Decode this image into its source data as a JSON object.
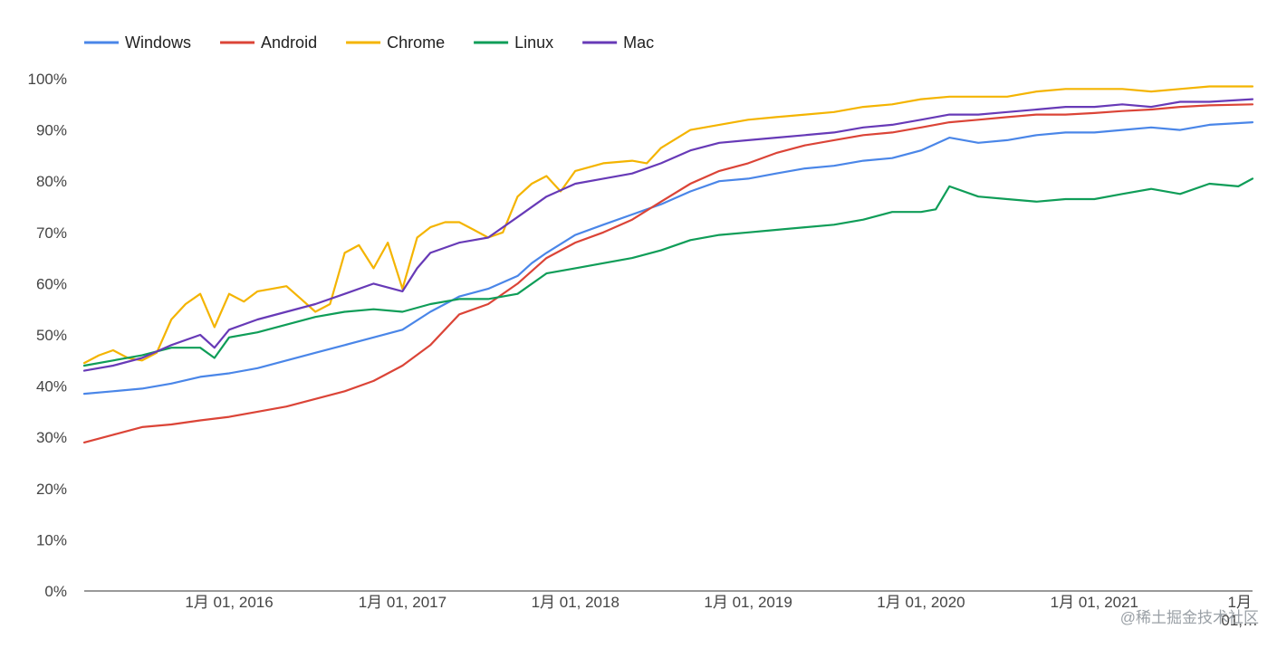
{
  "chart_data": {
    "type": "line",
    "title": "",
    "xlabel": "",
    "ylabel": "",
    "ylim": [
      0,
      100
    ],
    "y_ticks": [
      "0%",
      "10%",
      "20%",
      "30%",
      "40%",
      "50%",
      "60%",
      "70%",
      "80%",
      "90%",
      "100%"
    ],
    "x_range": [
      "2015-03-01",
      "2021-12-01"
    ],
    "x_ticks": [
      {
        "date": "2016-01-01",
        "label": "1月 01, 2016"
      },
      {
        "date": "2017-01-01",
        "label": "1月 01, 2017"
      },
      {
        "date": "2018-01-01",
        "label": "1月 01, 2018"
      },
      {
        "date": "2019-01-01",
        "label": "1月 01, 2019"
      },
      {
        "date": "2020-01-01",
        "label": "1月 01, 2020"
      },
      {
        "date": "2021-01-01",
        "label": "1月 01, 2021"
      },
      {
        "date": "2022-01-01",
        "label": "1月 01,…"
      }
    ],
    "legend_position": "top-left",
    "grid": false,
    "series": [
      {
        "name": "Windows",
        "color": "#4a86e8",
        "points": [
          [
            "2015-03-01",
            38.5
          ],
          [
            "2015-05-01",
            39
          ],
          [
            "2015-07-01",
            39.5
          ],
          [
            "2015-09-01",
            40.5
          ],
          [
            "2015-11-01",
            41.8
          ],
          [
            "2016-01-01",
            42.5
          ],
          [
            "2016-03-01",
            43.5
          ],
          [
            "2016-05-01",
            45
          ],
          [
            "2016-07-01",
            46.5
          ],
          [
            "2016-09-01",
            48
          ],
          [
            "2016-11-01",
            49.5
          ],
          [
            "2017-01-01",
            51
          ],
          [
            "2017-03-01",
            54.5
          ],
          [
            "2017-05-01",
            57.5
          ],
          [
            "2017-07-01",
            59
          ],
          [
            "2017-09-01",
            61.5
          ],
          [
            "2017-10-01",
            64
          ],
          [
            "2017-11-01",
            66
          ],
          [
            "2018-01-01",
            69.5
          ],
          [
            "2018-03-01",
            71.5
          ],
          [
            "2018-05-01",
            73.5
          ],
          [
            "2018-07-01",
            75.5
          ],
          [
            "2018-09-01",
            78
          ],
          [
            "2018-11-01",
            80
          ],
          [
            "2019-01-01",
            80.5
          ],
          [
            "2019-03-01",
            81.5
          ],
          [
            "2019-05-01",
            82.5
          ],
          [
            "2019-07-01",
            83
          ],
          [
            "2019-09-01",
            84
          ],
          [
            "2019-11-01",
            84.5
          ],
          [
            "2020-01-01",
            86
          ],
          [
            "2020-03-01",
            88.5
          ],
          [
            "2020-05-01",
            87.5
          ],
          [
            "2020-07-01",
            88
          ],
          [
            "2020-09-01",
            89
          ],
          [
            "2020-11-01",
            89.5
          ],
          [
            "2021-01-01",
            89.5
          ],
          [
            "2021-03-01",
            90
          ],
          [
            "2021-05-01",
            90.5
          ],
          [
            "2021-07-01",
            90
          ],
          [
            "2021-09-01",
            91
          ],
          [
            "2021-12-01",
            91.5
          ]
        ]
      },
      {
        "name": "Android",
        "color": "#db4437",
        "points": [
          [
            "2015-03-01",
            29
          ],
          [
            "2015-05-01",
            30.5
          ],
          [
            "2015-07-01",
            32
          ],
          [
            "2015-09-01",
            32.5
          ],
          [
            "2015-11-01",
            33.3
          ],
          [
            "2016-01-01",
            34
          ],
          [
            "2016-03-01",
            35
          ],
          [
            "2016-05-01",
            36
          ],
          [
            "2016-07-01",
            37.5
          ],
          [
            "2016-09-01",
            39
          ],
          [
            "2016-11-01",
            41
          ],
          [
            "2017-01-01",
            44
          ],
          [
            "2017-03-01",
            48
          ],
          [
            "2017-05-01",
            54
          ],
          [
            "2017-07-01",
            56
          ],
          [
            "2017-09-01",
            60
          ],
          [
            "2017-11-01",
            65
          ],
          [
            "2018-01-01",
            68
          ],
          [
            "2018-03-01",
            70
          ],
          [
            "2018-05-01",
            72.5
          ],
          [
            "2018-07-01",
            76
          ],
          [
            "2018-09-01",
            79.5
          ],
          [
            "2018-11-01",
            82
          ],
          [
            "2019-01-01",
            83.5
          ],
          [
            "2019-03-01",
            85.5
          ],
          [
            "2019-05-01",
            87
          ],
          [
            "2019-07-01",
            88
          ],
          [
            "2019-09-01",
            89
          ],
          [
            "2019-11-01",
            89.5
          ],
          [
            "2020-01-01",
            90.5
          ],
          [
            "2020-03-01",
            91.5
          ],
          [
            "2020-05-01",
            92
          ],
          [
            "2020-07-01",
            92.5
          ],
          [
            "2020-09-01",
            93
          ],
          [
            "2020-11-01",
            93
          ],
          [
            "2021-01-01",
            93.3
          ],
          [
            "2021-03-01",
            93.7
          ],
          [
            "2021-05-01",
            94
          ],
          [
            "2021-07-01",
            94.5
          ],
          [
            "2021-09-01",
            94.8
          ],
          [
            "2021-12-01",
            95
          ]
        ]
      },
      {
        "name": "Chrome",
        "color": "#f4b400",
        "points": [
          [
            "2015-03-01",
            44.5
          ],
          [
            "2015-04-01",
            46
          ],
          [
            "2015-05-01",
            47
          ],
          [
            "2015-06-01",
            45.5
          ],
          [
            "2015-07-01",
            45
          ],
          [
            "2015-08-01",
            46.5
          ],
          [
            "2015-09-01",
            53
          ],
          [
            "2015-10-01",
            56
          ],
          [
            "2015-11-01",
            58
          ],
          [
            "2015-12-01",
            51.5
          ],
          [
            "2016-01-01",
            58
          ],
          [
            "2016-02-01",
            56.5
          ],
          [
            "2016-03-01",
            58.5
          ],
          [
            "2016-04-01",
            59
          ],
          [
            "2016-05-01",
            59.5
          ],
          [
            "2016-06-01",
            57
          ],
          [
            "2016-07-01",
            54.5
          ],
          [
            "2016-08-01",
            56
          ],
          [
            "2016-09-01",
            66
          ],
          [
            "2016-10-01",
            67.5
          ],
          [
            "2016-11-01",
            63
          ],
          [
            "2016-12-01",
            68
          ],
          [
            "2017-01-01",
            59
          ],
          [
            "2017-02-01",
            69
          ],
          [
            "2017-03-01",
            71
          ],
          [
            "2017-04-01",
            72
          ],
          [
            "2017-05-01",
            72
          ],
          [
            "2017-06-01",
            70.5
          ],
          [
            "2017-07-01",
            69
          ],
          [
            "2017-08-01",
            70
          ],
          [
            "2017-09-01",
            77
          ],
          [
            "2017-10-01",
            79.5
          ],
          [
            "2017-11-01",
            81
          ],
          [
            "2017-12-01",
            78
          ],
          [
            "2018-01-01",
            82
          ],
          [
            "2018-03-01",
            83.5
          ],
          [
            "2018-05-01",
            84
          ],
          [
            "2018-06-01",
            83.5
          ],
          [
            "2018-07-01",
            86.5
          ],
          [
            "2018-09-01",
            90
          ],
          [
            "2018-11-01",
            91
          ],
          [
            "2019-01-01",
            92
          ],
          [
            "2019-03-01",
            92.5
          ],
          [
            "2019-05-01",
            93
          ],
          [
            "2019-07-01",
            93.5
          ],
          [
            "2019-09-01",
            94.5
          ],
          [
            "2019-11-01",
            95
          ],
          [
            "2020-01-01",
            96
          ],
          [
            "2020-03-01",
            96.5
          ],
          [
            "2020-05-01",
            96.5
          ],
          [
            "2020-07-01",
            96.5
          ],
          [
            "2020-09-01",
            97.5
          ],
          [
            "2020-11-01",
            98
          ],
          [
            "2021-01-01",
            98
          ],
          [
            "2021-03-01",
            98
          ],
          [
            "2021-05-01",
            97.5
          ],
          [
            "2021-07-01",
            98
          ],
          [
            "2021-09-01",
            98.5
          ],
          [
            "2021-12-01",
            98.5
          ]
        ]
      },
      {
        "name": "Linux",
        "color": "#0f9d58",
        "points": [
          [
            "2015-03-01",
            44
          ],
          [
            "2015-05-01",
            45
          ],
          [
            "2015-07-01",
            46
          ],
          [
            "2015-09-01",
            47.5
          ],
          [
            "2015-11-01",
            47.5
          ],
          [
            "2015-12-01",
            45.5
          ],
          [
            "2016-01-01",
            49.5
          ],
          [
            "2016-03-01",
            50.5
          ],
          [
            "2016-05-01",
            52
          ],
          [
            "2016-07-01",
            53.5
          ],
          [
            "2016-09-01",
            54.5
          ],
          [
            "2016-11-01",
            55
          ],
          [
            "2017-01-01",
            54.5
          ],
          [
            "2017-03-01",
            56
          ],
          [
            "2017-05-01",
            57
          ],
          [
            "2017-07-01",
            57
          ],
          [
            "2017-09-01",
            58
          ],
          [
            "2017-11-01",
            62
          ],
          [
            "2018-01-01",
            63
          ],
          [
            "2018-03-01",
            64
          ],
          [
            "2018-05-01",
            65
          ],
          [
            "2018-07-01",
            66.5
          ],
          [
            "2018-09-01",
            68.5
          ],
          [
            "2018-11-01",
            69.5
          ],
          [
            "2019-01-01",
            70
          ],
          [
            "2019-03-01",
            70.5
          ],
          [
            "2019-05-01",
            71
          ],
          [
            "2019-07-01",
            71.5
          ],
          [
            "2019-09-01",
            72.5
          ],
          [
            "2019-11-01",
            74
          ],
          [
            "2020-01-01",
            74
          ],
          [
            "2020-02-01",
            74.5
          ],
          [
            "2020-03-01",
            79
          ],
          [
            "2020-05-01",
            77
          ],
          [
            "2020-07-01",
            76.5
          ],
          [
            "2020-09-01",
            76
          ],
          [
            "2020-11-01",
            76.5
          ],
          [
            "2021-01-01",
            76.5
          ],
          [
            "2021-03-01",
            77.5
          ],
          [
            "2021-05-01",
            78.5
          ],
          [
            "2021-07-01",
            77.5
          ],
          [
            "2021-09-01",
            79.5
          ],
          [
            "2021-11-01",
            79
          ],
          [
            "2021-12-01",
            80.5
          ]
        ]
      },
      {
        "name": "Mac",
        "color": "#673ab7",
        "points": [
          [
            "2015-03-01",
            43
          ],
          [
            "2015-05-01",
            44
          ],
          [
            "2015-07-01",
            45.5
          ],
          [
            "2015-09-01",
            48
          ],
          [
            "2015-11-01",
            50
          ],
          [
            "2015-12-01",
            47.5
          ],
          [
            "2016-01-01",
            51
          ],
          [
            "2016-03-01",
            53
          ],
          [
            "2016-05-01",
            54.5
          ],
          [
            "2016-07-01",
            56
          ],
          [
            "2016-09-01",
            58
          ],
          [
            "2016-11-01",
            60
          ],
          [
            "2017-01-01",
            58.5
          ],
          [
            "2017-02-01",
            63
          ],
          [
            "2017-03-01",
            66
          ],
          [
            "2017-05-01",
            68
          ],
          [
            "2017-07-01",
            69
          ],
          [
            "2017-09-01",
            73
          ],
          [
            "2017-11-01",
            77
          ],
          [
            "2018-01-01",
            79.5
          ],
          [
            "2018-03-01",
            80.5
          ],
          [
            "2018-05-01",
            81.5
          ],
          [
            "2018-07-01",
            83.5
          ],
          [
            "2018-09-01",
            86
          ],
          [
            "2018-11-01",
            87.5
          ],
          [
            "2019-01-01",
            88
          ],
          [
            "2019-03-01",
            88.5
          ],
          [
            "2019-05-01",
            89
          ],
          [
            "2019-07-01",
            89.5
          ],
          [
            "2019-09-01",
            90.5
          ],
          [
            "2019-11-01",
            91
          ],
          [
            "2020-01-01",
            92
          ],
          [
            "2020-03-01",
            93
          ],
          [
            "2020-05-01",
            93
          ],
          [
            "2020-07-01",
            93.5
          ],
          [
            "2020-09-01",
            94
          ],
          [
            "2020-11-01",
            94.5
          ],
          [
            "2021-01-01",
            94.5
          ],
          [
            "2021-03-01",
            95
          ],
          [
            "2021-05-01",
            94.5
          ],
          [
            "2021-07-01",
            95.5
          ],
          [
            "2021-09-01",
            95.5
          ],
          [
            "2021-12-01",
            96
          ]
        ]
      }
    ]
  },
  "watermark": "@稀土掘金技术社区"
}
